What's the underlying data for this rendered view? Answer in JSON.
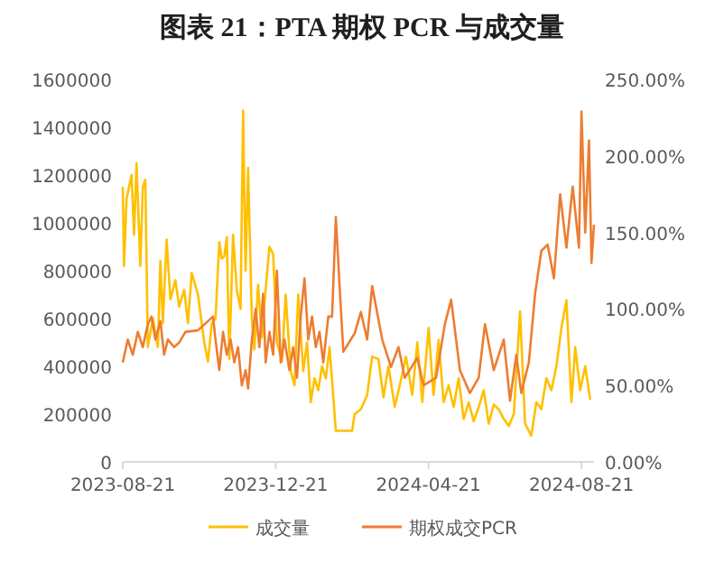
{
  "chart_data": {
    "type": "line",
    "title": "图表 21：PTA 期权 PCR 与成交量",
    "legend": "bottom",
    "grid": false,
    "xlim": [
      "2023-08-21",
      "2024-08-31"
    ],
    "xticks": [
      "2023-08-21",
      "2023-12-21",
      "2024-04-21",
      "2024-08-21"
    ],
    "ylim": [
      0,
      1600000
    ],
    "yticks": [
      0,
      200000,
      400000,
      600000,
      800000,
      1000000,
      1200000,
      1400000,
      1600000
    ],
    "y2lim": [
      0,
      250
    ],
    "y2ticks": [
      {
        "value": 0,
        "label": "0.00%"
      },
      {
        "value": 50,
        "label": "50.00%"
      },
      {
        "value": 100,
        "label": "100.00%"
      },
      {
        "value": 150,
        "label": "150.00%"
      },
      {
        "value": 200,
        "label": "200.00%"
      },
      {
        "value": 250,
        "label": "250.00%"
      }
    ],
    "series": [
      {
        "name": "成交量",
        "color": "#ffc000",
        "x": [
          "2023-08-21",
          "2023-08-22",
          "2023-08-24",
          "2023-08-28",
          "2023-08-30",
          "2023-09-01",
          "2023-09-04",
          "2023-09-06",
          "2023-09-08",
          "2023-09-10",
          "2023-09-14",
          "2023-09-18",
          "2023-09-20",
          "2023-09-22",
          "2023-09-25",
          "2023-09-28",
          "2023-10-02",
          "2023-10-05",
          "2023-10-09",
          "2023-10-12",
          "2023-10-15",
          "2023-10-20",
          "2023-10-25",
          "2023-10-28",
          "2023-10-31",
          "2023-11-03",
          "2023-11-06",
          "2023-11-08",
          "2023-11-10",
          "2023-11-12",
          "2023-11-14",
          "2023-11-17",
          "2023-11-20",
          "2023-11-23",
          "2023-11-25",
          "2023-11-27",
          "2023-11-29",
          "2023-12-02",
          "2023-12-04",
          "2023-12-07",
          "2023-12-10",
          "2023-12-13",
          "2023-12-16",
          "2023-12-19",
          "2023-12-22",
          "2023-12-26",
          "2023-12-29",
          "2024-01-02",
          "2024-01-05",
          "2024-01-08",
          "2024-01-12",
          "2024-01-15",
          "2024-01-18",
          "2024-01-21",
          "2024-01-24",
          "2024-01-27",
          "2024-01-30",
          "2024-02-02",
          "2024-02-07",
          "2024-02-20",
          "2024-02-22",
          "2024-02-27",
          "2024-03-03",
          "2024-03-07",
          "2024-03-12",
          "2024-03-16",
          "2024-03-20",
          "2024-03-25",
          "2024-03-29",
          "2024-04-03",
          "2024-04-08",
          "2024-04-12",
          "2024-04-16",
          "2024-04-21",
          "2024-04-25",
          "2024-04-29",
          "2024-05-03",
          "2024-05-07",
          "2024-05-11",
          "2024-05-15",
          "2024-05-19",
          "2024-05-23",
          "2024-05-27",
          "2024-05-31",
          "2024-06-04",
          "2024-06-08",
          "2024-06-12",
          "2024-06-16",
          "2024-06-20",
          "2024-06-24",
          "2024-06-28",
          "2024-07-03",
          "2024-07-07",
          "2024-07-12",
          "2024-07-16",
          "2024-07-20",
          "2024-07-24",
          "2024-07-28",
          "2024-08-01",
          "2024-08-05",
          "2024-08-09",
          "2024-08-13",
          "2024-08-16",
          "2024-08-20",
          "2024-08-24",
          "2024-08-28"
        ],
        "values": [
          1150000,
          820000,
          1100000,
          1200000,
          950000,
          1250000,
          820000,
          1150000,
          1180000,
          480000,
          600000,
          480000,
          840000,
          580000,
          930000,
          680000,
          760000,
          650000,
          720000,
          580000,
          790000,
          700000,
          500000,
          420000,
          580000,
          600000,
          920000,
          850000,
          860000,
          940000,
          430000,
          950000,
          720000,
          640000,
          1470000,
          800000,
          1230000,
          600000,
          470000,
          740000,
          520000,
          720000,
          900000,
          870000,
          500000,
          420000,
          700000,
          380000,
          320000,
          700000,
          380000,
          500000,
          250000,
          350000,
          300000,
          400000,
          350000,
          480000,
          130000,
          130000,
          200000,
          220000,
          280000,
          440000,
          430000,
          270000,
          400000,
          230000,
          320000,
          440000,
          280000,
          500000,
          250000,
          560000,
          280000,
          510000,
          250000,
          320000,
          230000,
          350000,
          180000,
          250000,
          170000,
          230000,
          300000,
          160000,
          240000,
          220000,
          180000,
          150000,
          200000,
          630000,
          160000,
          110000,
          250000,
          220000,
          350000,
          300000,
          400000,
          560000,
          676000,
          250000,
          480000,
          300000,
          400000,
          260000
        ]
      },
      {
        "name": "期权成交PCR",
        "color": "#ed7d31",
        "axis": "y2",
        "x": [
          "2023-08-21",
          "2023-08-25",
          "2023-08-29",
          "2023-09-02",
          "2023-09-06",
          "2023-09-10",
          "2023-09-13",
          "2023-09-16",
          "2023-09-20",
          "2023-09-23",
          "2023-09-26",
          "2023-10-01",
          "2023-10-05",
          "2023-10-10",
          "2023-10-20",
          "2023-11-01",
          "2023-11-03",
          "2023-11-06",
          "2023-11-09",
          "2023-11-12",
          "2023-11-15",
          "2023-11-18",
          "2023-11-21",
          "2023-11-24",
          "2023-11-27",
          "2023-11-29",
          "2023-12-02",
          "2023-12-05",
          "2023-12-08",
          "2023-12-11",
          "2023-12-13",
          "2023-12-16",
          "2023-12-19",
          "2023-12-22",
          "2023-12-25",
          "2023-12-28",
          "2024-01-01",
          "2024-01-04",
          "2024-01-07",
          "2024-01-10",
          "2024-01-13",
          "2024-01-16",
          "2024-01-19",
          "2024-01-22",
          "2024-01-25",
          "2024-01-28",
          "2024-02-01",
          "2024-02-04",
          "2024-02-07",
          "2024-02-10",
          "2024-02-13",
          "2024-02-22",
          "2024-02-27",
          "2024-03-03",
          "2024-03-07",
          "2024-03-15",
          "2024-03-22",
          "2024-03-28",
          "2024-04-02",
          "2024-04-12",
          "2024-04-17",
          "2024-04-27",
          "2024-05-04",
          "2024-05-09",
          "2024-05-16",
          "2024-05-24",
          "2024-05-31",
          "2024-06-05",
          "2024-06-12",
          "2024-06-20",
          "2024-06-25",
          "2024-06-30",
          "2024-07-04",
          "2024-07-10",
          "2024-07-15",
          "2024-07-20",
          "2024-07-25",
          "2024-07-30",
          "2024-08-04",
          "2024-08-09",
          "2024-08-14",
          "2024-08-19",
          "2024-08-21",
          "2024-08-24",
          "2024-08-27",
          "2024-08-29",
          "2024-08-31"
        ],
        "values": [
          65,
          80,
          70,
          85,
          75,
          90,
          95,
          80,
          92,
          70,
          80,
          75,
          78,
          85,
          86,
          95,
          80,
          60,
          85,
          70,
          80,
          65,
          75,
          50,
          60,
          48,
          80,
          100,
          75,
          110,
          65,
          85,
          70,
          125,
          65,
          80,
          60,
          75,
          55,
          95,
          120,
          80,
          95,
          75,
          85,
          65,
          95,
          95,
          160,
          115,
          72,
          84,
          98,
          80,
          115,
          80,
          62,
          75,
          55,
          68,
          50,
          55,
          90,
          106,
          60,
          45,
          55,
          90,
          60,
          80,
          40,
          70,
          45,
          65,
          110,
          138,
          142,
          120,
          175,
          140,
          180,
          140,
          229,
          150,
          210,
          130,
          155
        ]
      }
    ]
  }
}
